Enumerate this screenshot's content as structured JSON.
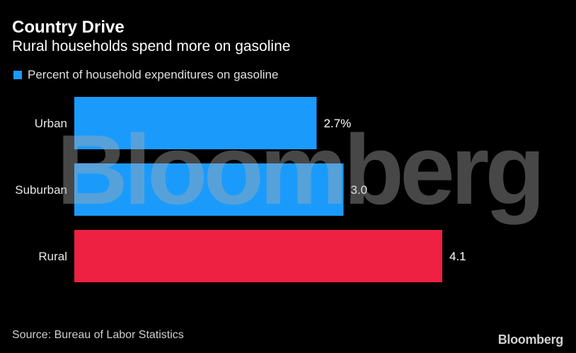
{
  "header": {
    "title": "Country Drive",
    "subtitle": "Rural households spend more on gasoline"
  },
  "legend": {
    "label": "Percent of household expenditures on gasoline",
    "color": "#1a9bfc"
  },
  "chart_data": {
    "type": "bar",
    "orientation": "horizontal",
    "title": "Country Drive",
    "subtitle": "Rural households spend more on gasoline",
    "categories": [
      "Urban",
      "Suburban",
      "Rural"
    ],
    "values": [
      2.7,
      3.0,
      4.1
    ],
    "value_labels": [
      "2.7%",
      "3.0",
      "4.1"
    ],
    "colors": [
      "#1a9bfc",
      "#1a9bfc",
      "#ee2143"
    ],
    "series": [
      {
        "name": "Percent of household expenditures on gasoline",
        "values": [
          2.7,
          3.0,
          4.1
        ]
      }
    ],
    "xlim": [
      0,
      4.1
    ],
    "grid": false,
    "legend_position": "top-left"
  },
  "source": "Source: Bureau of Labor Statistics",
  "branding": {
    "footer_logo": "Bloomberg",
    "watermark": "Bloomberg"
  }
}
